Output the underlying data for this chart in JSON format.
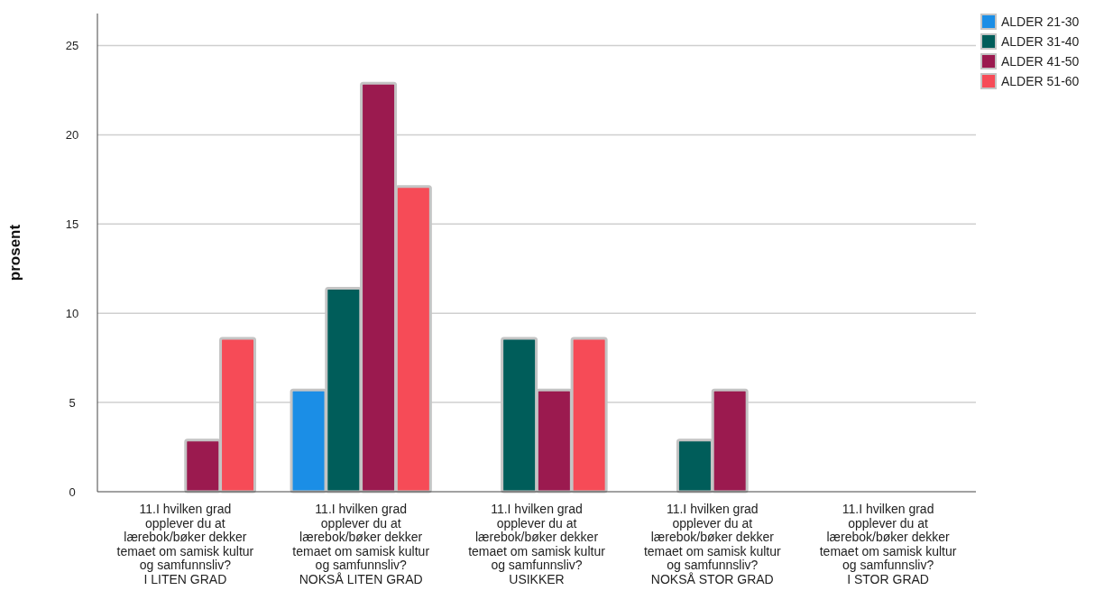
{
  "chart_data": {
    "type": "bar",
    "ylabel": "prosent",
    "categories": [
      "11.I hvilken grad opplever du at lærebok/bøker dekker temaet om samisk kultur og samfunnsliv?\nI LITEN GRAD",
      "11.I hvilken grad opplever du at lærebok/bøker dekker temaet om samisk kultur og samfunnsliv?\nNOKSÅ LITEN GRAD",
      "11.I hvilken grad opplever du at lærebok/bøker dekker temaet om samisk kultur og samfunnsliv?\nUSIKKER",
      "11.I hvilken grad opplever du at lærebok/bøker dekker temaet om samisk kultur og samfunnsliv?\nNOKSÅ STOR GRAD",
      "11.I hvilken grad opplever du at lærebok/bøker dekker temaet om samisk kultur og samfunnsliv?\nI STOR GRAD"
    ],
    "series": [
      {
        "name": "ALDER 21-30",
        "color": "#1b8ee6",
        "values": [
          0,
          5.7,
          0,
          0,
          0
        ]
      },
      {
        "name": "ALDER 31-40",
        "color": "#005d5a",
        "values": [
          0,
          11.4,
          8.6,
          2.9,
          0
        ]
      },
      {
        "name": "ALDER 41-50",
        "color": "#9b1a4f",
        "values": [
          2.9,
          22.9,
          5.7,
          5.7,
          0
        ]
      },
      {
        "name": "ALDER 51-60",
        "color": "#f64b57",
        "values": [
          8.6,
          17.1,
          8.6,
          0,
          0
        ]
      }
    ],
    "ylim": [
      0,
      26.8
    ],
    "yticks": [
      0,
      5,
      10,
      15,
      20,
      25
    ],
    "grid": "y",
    "legend": "top right"
  }
}
